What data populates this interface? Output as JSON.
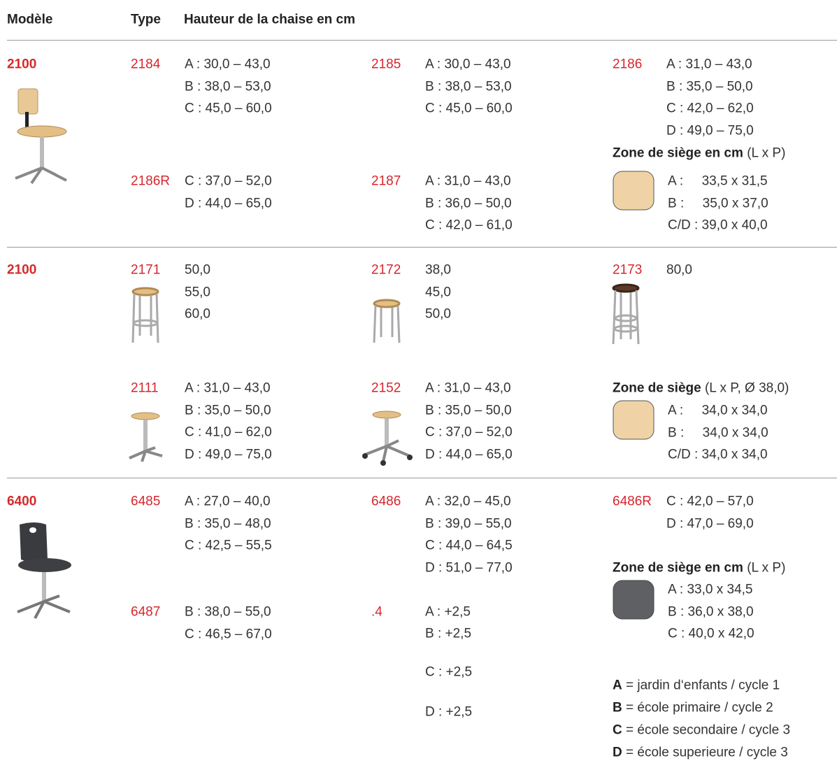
{
  "header": {
    "model": "Modèle",
    "type": "Type",
    "height": "Hauteur de la chaise en cm"
  },
  "sections": [
    {
      "model": "2100",
      "entries": [
        {
          "type": "2184",
          "lines": [
            "A : 30,0 – 43,0",
            "B : 38,0 – 53,0",
            "C : 45,0 – 60,0"
          ]
        },
        {
          "type": "2185",
          "lines": [
            "A : 30,0 – 43,0",
            "B : 38,0 – 53,0",
            "C : 45,0 – 60,0"
          ]
        },
        {
          "type": "2186",
          "lines": [
            "A : 31,0 – 43,0",
            "B : 35,0 – 50,0",
            "C : 42,0 – 62,0",
            "D : 49,0 – 75,0"
          ]
        },
        {
          "type": "2186R",
          "lines": [
            "C : 37,0 – 52,0",
            "D : 44,0 – 65,0"
          ]
        },
        {
          "type": "2187",
          "lines": [
            "A : 31,0 – 43,0",
            "B : 36,0 – 50,0",
            "C : 42,0 – 61,0"
          ]
        }
      ],
      "seat": {
        "title": "Zone de siège en cm",
        "note": "(L x P)",
        "lines": [
          "A :     33,5 x 31,5",
          "B :     35,0 x 37,0",
          "C/D : 39,0 x 40,0"
        ]
      }
    },
    {
      "model": "2100",
      "entries": [
        {
          "type": "2171",
          "lines": [
            "50,0",
            "55,0",
            "60,0"
          ]
        },
        {
          "type": "2172",
          "lines": [
            "38,0",
            "45,0",
            "50,0"
          ]
        },
        {
          "type": "2173",
          "lines": [
            "80,0"
          ]
        },
        {
          "type": "2111",
          "lines": [
            "A : 31,0 – 43,0",
            "B : 35,0 – 50,0",
            "C : 41,0 – 62,0",
            "D : 49,0 – 75,0"
          ]
        },
        {
          "type": "2152",
          "lines": [
            "A : 31,0 – 43,0",
            "B : 35,0 – 50,0",
            "C : 37,0 – 52,0",
            "D : 44,0 – 65,0"
          ]
        }
      ],
      "seat": {
        "title": "Zone de siège",
        "note": "(L x P, Ø 38,0)",
        "lines": [
          "A :     34,0 x 34,0",
          "B :     34,0 x 34,0",
          "C/D : 34,0 x 34,0"
        ]
      }
    },
    {
      "model": "6400",
      "entries": [
        {
          "type": "6485",
          "lines": [
            "A : 27,0 – 40,0",
            "B : 35,0 – 48,0",
            "C : 42,5 – 55,5"
          ]
        },
        {
          "type": "6486",
          "lines": [
            "A : 32,0 – 45,0",
            "B : 39,0 – 55,0",
            "C : 44,0 – 64,5",
            "D : 51,0 – 77,0"
          ]
        },
        {
          "type": "6486R",
          "lines": [
            "C : 42,0 – 57,0",
            "D : 47,0 – 69,0"
          ]
        },
        {
          "type": "6487",
          "lines": [
            "B : 38,0 – 55,0",
            "C : 46,5 – 67,0"
          ]
        },
        {
          "type": ".4",
          "lines": [
            "A : +2,5",
            "B : +2,5",
            "C : +2,5",
            "D : +2,5"
          ]
        }
      ],
      "seat": {
        "title": "Zone de siège en cm",
        "note": "(L x P)",
        "lines": [
          "A : 33,0 x 34,5",
          "B : 36,0 x 38,0",
          "C : 40,0 x 42,0"
        ]
      }
    }
  ],
  "legend": [
    {
      "key": "A",
      "text": "= jardin d‘enfants / cycle 1"
    },
    {
      "key": "B",
      "text": "= école primaire / cycle 2"
    },
    {
      "key": "C",
      "text": "= école secondaire / cycle 3"
    },
    {
      "key": "D",
      "text": "= école superieure / cycle 3"
    }
  ]
}
